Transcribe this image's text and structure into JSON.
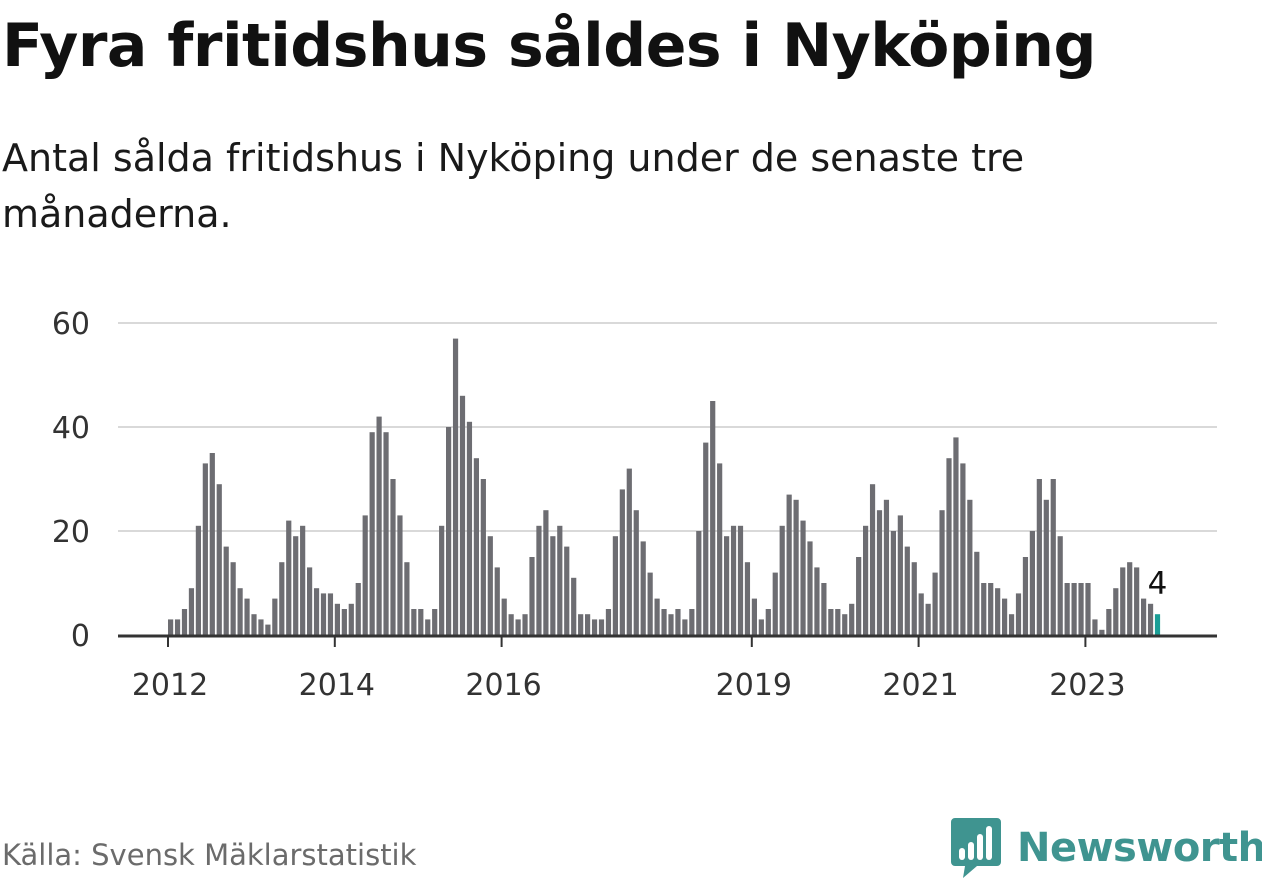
{
  "title": "Fyra fritidshus såldes i Nyköping",
  "subtitle": "Antal sålda fritidshus i Nyköping under de senaste tre månaderna.",
  "source": "Källa: Svensk Mäklarstatistik",
  "brand": {
    "name": "Newsworthy",
    "color": "#3f9490"
  },
  "chart_data": {
    "type": "bar",
    "xlabel": "",
    "ylabel": "",
    "ylim": [
      0,
      60
    ],
    "y_ticks": [
      0,
      20,
      40,
      60
    ],
    "grid": true,
    "x_tick_labels": [
      "2012",
      "2014",
      "2016",
      "2019",
      "2021",
      "2023"
    ],
    "x_tick_positions": [
      "2012-01",
      "2014-01",
      "2016-01",
      "2019-01",
      "2021-01",
      "2023-01"
    ],
    "start_month": "2012-01",
    "values": [
      3,
      3,
      5,
      9,
      21,
      33,
      35,
      29,
      17,
      14,
      9,
      7,
      4,
      3,
      2,
      7,
      14,
      22,
      19,
      21,
      13,
      9,
      8,
      8,
      6,
      5,
      6,
      10,
      23,
      39,
      42,
      39,
      30,
      23,
      14,
      5,
      5,
      3,
      5,
      21,
      40,
      57,
      46,
      41,
      34,
      30,
      19,
      13,
      7,
      4,
      3,
      4,
      15,
      21,
      24,
      19,
      21,
      17,
      11,
      4,
      4,
      3,
      3,
      5,
      19,
      28,
      32,
      24,
      18,
      12,
      7,
      5,
      4,
      5,
      3,
      5,
      20,
      37,
      45,
      33,
      19,
      21,
      21,
      14,
      7,
      3,
      5,
      12,
      21,
      27,
      26,
      22,
      18,
      13,
      10,
      5,
      5,
      4,
      6,
      15,
      21,
      29,
      24,
      26,
      20,
      23,
      17,
      14,
      8,
      6,
      12,
      24,
      34,
      38,
      33,
      26,
      16,
      10,
      10,
      9,
      7,
      4,
      8,
      15,
      20,
      30,
      26,
      30,
      19,
      10,
      10,
      10,
      10,
      3,
      1,
      5,
      9,
      13,
      14,
      13,
      7,
      6,
      4
    ],
    "highlight": {
      "label": "4",
      "value": 4,
      "color": "#1a9e96"
    },
    "bar_color": "#6d6d72",
    "grid_color": "#d9d9d9",
    "axis_color": "#333333"
  }
}
